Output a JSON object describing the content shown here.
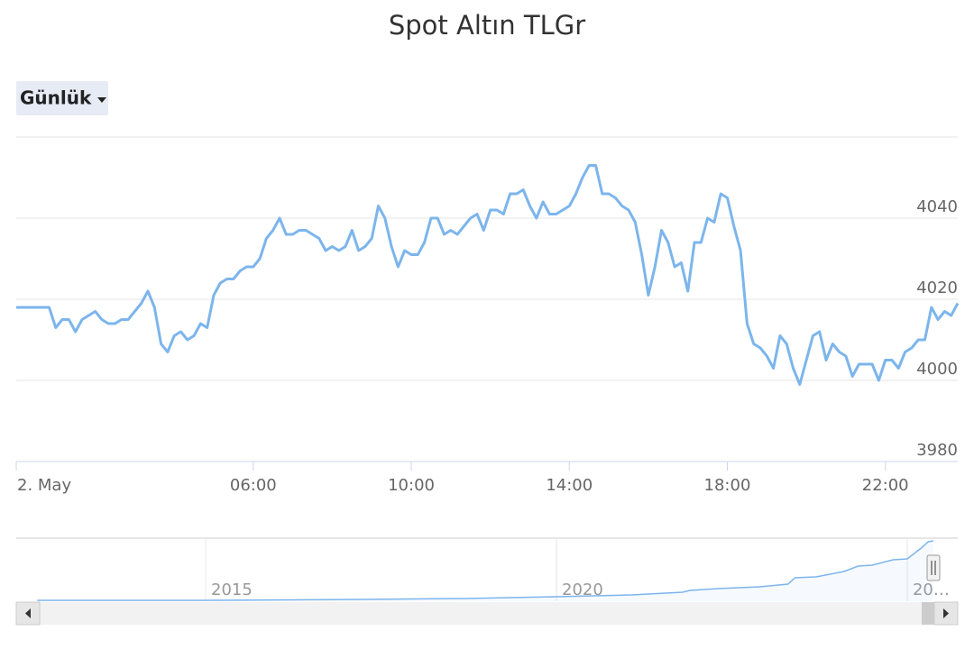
{
  "range_selector": "Günlük",
  "chart_data": [
    {
      "type": "line",
      "title": "Spot Altın TLGr",
      "color": "#7cb5ec",
      "grid": true,
      "x": [
        "00:00",
        "00:10",
        "00:20",
        "00:30",
        "00:40",
        "00:50",
        "01:00",
        "01:10",
        "01:20",
        "01:30",
        "01:40",
        "01:50",
        "02:00",
        "02:10",
        "02:20",
        "02:30",
        "02:40",
        "02:50",
        "03:00",
        "03:10",
        "03:20",
        "03:30",
        "03:40",
        "03:50",
        "04:00",
        "04:10",
        "04:20",
        "04:30",
        "04:40",
        "04:50",
        "05:00",
        "05:10",
        "05:20",
        "05:30",
        "05:40",
        "05:50",
        "06:00",
        "06:10",
        "06:20",
        "06:30",
        "06:40",
        "06:50",
        "07:00",
        "07:10",
        "07:20",
        "07:30",
        "07:40",
        "07:50",
        "08:00",
        "08:10",
        "08:20",
        "08:30",
        "08:40",
        "08:50",
        "09:00",
        "09:10",
        "09:20",
        "09:30",
        "09:40",
        "09:50",
        "10:00",
        "10:10",
        "10:20",
        "10:30",
        "10:40",
        "10:50",
        "11:00",
        "11:10",
        "11:20",
        "11:30",
        "11:40",
        "11:50",
        "12:00",
        "12:10",
        "12:20",
        "12:30",
        "12:40",
        "12:50",
        "13:00",
        "13:10",
        "13:20",
        "13:30",
        "13:40",
        "13:50",
        "14:00",
        "14:10",
        "14:20",
        "14:30",
        "14:40",
        "14:50",
        "15:00",
        "15:10",
        "15:20",
        "15:30",
        "15:40",
        "15:50",
        "16:00",
        "16:10",
        "16:20",
        "16:30",
        "16:40",
        "16:50",
        "17:00",
        "17:10",
        "17:20",
        "17:30",
        "17:40",
        "17:50",
        "18:00",
        "18:10",
        "18:20",
        "18:30",
        "18:40",
        "18:50",
        "19:00",
        "19:10",
        "19:20",
        "19:30",
        "19:40",
        "19:50",
        "20:00",
        "20:10",
        "20:20",
        "20:30",
        "20:40",
        "20:50",
        "21:00",
        "21:10",
        "21:20",
        "21:30",
        "21:40",
        "21:50",
        "22:00",
        "22:10",
        "22:20",
        "22:30",
        "22:40",
        "22:50",
        "23:00",
        "23:10",
        "23:20",
        "23:30",
        "23:40",
        "23:50"
      ],
      "values": [
        4018,
        4018,
        4018,
        4018,
        4018,
        4018,
        4013,
        4015,
        4015,
        4012,
        4015,
        4016,
        4017,
        4015,
        4014,
        4014,
        4015,
        4015,
        4017,
        4019,
        4022,
        4018,
        4009,
        4007,
        4011,
        4012,
        4010,
        4011,
        4014,
        4013,
        4021,
        4024,
        4025,
        4025,
        4027,
        4028,
        4028,
        4030,
        4035,
        4037,
        4040,
        4036,
        4036,
        4037,
        4037,
        4036,
        4035,
        4032,
        4033,
        4032,
        4033,
        4037,
        4032,
        4033,
        4035,
        4043,
        4040,
        4033,
        4028,
        4032,
        4031,
        4031,
        4034,
        4040,
        4040,
        4036,
        4037,
        4036,
        4038,
        4040,
        4041,
        4037,
        4042,
        4042,
        4041,
        4046,
        4046,
        4047,
        4043,
        4040,
        4044,
        4041,
        4041,
        4042,
        4043,
        4046,
        4050,
        4053,
        4053,
        4046,
        4046,
        4045,
        4043,
        4042,
        4039,
        4031,
        4021,
        4028,
        4037,
        4034,
        4028,
        4029,
        4022,
        4034,
        4034,
        4040,
        4039,
        4046,
        4045,
        4038,
        4032,
        4014,
        4009,
        4008,
        4006,
        4003,
        4011,
        4009,
        4003,
        3999,
        4005,
        4011,
        4012,
        4005,
        4009,
        4007,
        4006,
        4001,
        4004,
        4004,
        4004,
        4000,
        4005,
        4005,
        4003,
        4007,
        4008,
        4010,
        4010,
        4018,
        4015,
        4017,
        4016,
        4019
      ],
      "xlim": [
        "00:00",
        "23:50"
      ],
      "xticks": [
        {
          "value": "00:00",
          "label": "2. May"
        },
        "06:00",
        "10:00",
        "14:00",
        "18:00",
        "22:00"
      ],
      "ylim": [
        3980,
        4060
      ],
      "yticks": [
        3980,
        4000,
        4020,
        4040
      ]
    },
    {
      "type": "area",
      "color": "#7cb5ec",
      "x": [
        2012.6,
        2015,
        2017.2,
        2018.7,
        2020,
        2021.07,
        2021.8,
        2021.9,
        2022.3,
        2022.9,
        2023.3,
        2023.4,
        2023.7,
        2024.1,
        2024.3,
        2024.5,
        2024.8,
        2025.0,
        2025.2,
        2025.3,
        2025.37
      ],
      "values": [
        60,
        60,
        120,
        180,
        300,
        420,
        600,
        720,
        840,
        960,
        1140,
        1560,
        1620,
        1980,
        2340,
        2400,
        2760,
        2820,
        3540,
        3960,
        4020
      ],
      "xlim": [
        2012.3,
        2025.72
      ],
      "ylim": [
        0,
        4200
      ],
      "xticks": [
        2015,
        2020,
        {
          "value": 2025,
          "label": "20…"
        }
      ]
    }
  ]
}
